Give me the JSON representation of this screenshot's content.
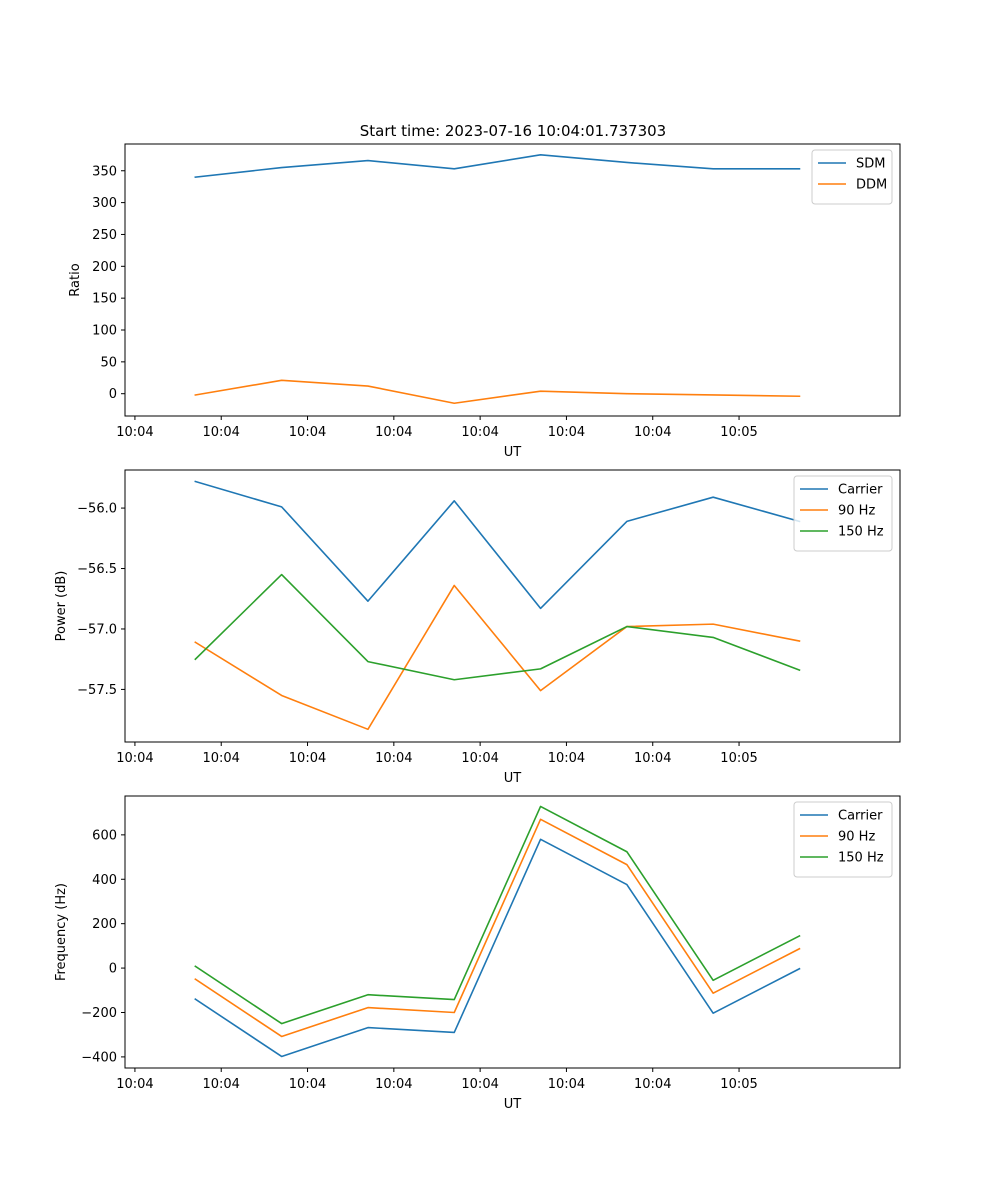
{
  "figure_title": "Start time: 2023-07-16 10:04:01.737303",
  "colors": {
    "blue": "#1f77b4",
    "orange": "#ff7f0e",
    "green": "#2ca02c"
  },
  "chart_data": [
    {
      "type": "line",
      "title": "Start time: 2023-07-16 10:04:01.737303",
      "xlabel": "UT",
      "ylabel": "Ratio",
      "x": [
        1,
        2,
        3,
        4,
        5,
        6,
        7,
        8
      ],
      "x_tick_labels": [
        "10:04",
        "10:04",
        "10:04",
        "10:04",
        "10:04",
        "10:04",
        "10:04",
        "10:05"
      ],
      "xlim": [
        0.185,
        9.165
      ],
      "ylim": [
        -35,
        392
      ],
      "y_ticks": [
        0,
        50,
        100,
        150,
        200,
        250,
        300,
        350
      ],
      "y_tick_labels": [
        "0",
        "50",
        "100",
        "150",
        "200",
        "250",
        "300",
        "350"
      ],
      "legend_position": "top-right",
      "series": [
        {
          "name": "SDM",
          "color": "#1f77b4",
          "values": [
            340,
            355,
            366,
            353,
            375,
            363,
            353,
            353
          ]
        },
        {
          "name": "DDM",
          "color": "#ff7f0e",
          "values": [
            -2,
            21,
            12,
            -15,
            4,
            0,
            -2,
            -4
          ]
        }
      ]
    },
    {
      "type": "line",
      "title": "",
      "xlabel": "UT",
      "ylabel": "Power (dB)",
      "x": [
        1,
        2,
        3,
        4,
        5,
        6,
        7,
        8
      ],
      "x_tick_labels": [
        "10:04",
        "10:04",
        "10:04",
        "10:04",
        "10:04",
        "10:04",
        "10:04",
        "10:05"
      ],
      "xlim": [
        0.185,
        9.165
      ],
      "ylim": [
        -57.935,
        -55.685
      ],
      "y_ticks": [
        -56.0,
        -56.5,
        -57.0,
        -57.5
      ],
      "y_tick_labels": [
        "−56.0",
        "−56.5",
        "−57.0",
        "−57.5"
      ],
      "legend_position": "top-right",
      "series": [
        {
          "name": "Carrier",
          "color": "#1f77b4",
          "values": [
            -55.78,
            -55.99,
            -56.77,
            -55.94,
            -56.83,
            -56.11,
            -55.91,
            -56.11
          ]
        },
        {
          "name": "90 Hz",
          "color": "#ff7f0e",
          "values": [
            -57.11,
            -57.55,
            -57.83,
            -56.64,
            -57.51,
            -56.98,
            -56.96,
            -57.1
          ]
        },
        {
          "name": "150 Hz",
          "color": "#2ca02c",
          "values": [
            -57.25,
            -56.55,
            -57.27,
            -57.42,
            -57.33,
            -56.98,
            -57.07,
            -57.34
          ]
        }
      ]
    },
    {
      "type": "line",
      "title": "",
      "xlabel": "UT",
      "ylabel": "Frequency (Hz)",
      "x": [
        1,
        2,
        3,
        4,
        5,
        6,
        7,
        8
      ],
      "x_tick_labels": [
        "10:04",
        "10:04",
        "10:04",
        "10:04",
        "10:04",
        "10:04",
        "10:04",
        "10:05"
      ],
      "xlim": [
        0.185,
        9.165
      ],
      "ylim": [
        -450,
        775
      ],
      "y_ticks": [
        -400,
        -200,
        0,
        200,
        400,
        600
      ],
      "y_tick_labels": [
        "−400",
        "−200",
        "0",
        "200",
        "400",
        "600"
      ],
      "legend_position": "top-right",
      "series": [
        {
          "name": "Carrier",
          "color": "#1f77b4",
          "values": [
            -140,
            -398,
            -268,
            -290,
            580,
            376,
            -203,
            -3
          ]
        },
        {
          "name": "90 Hz",
          "color": "#ff7f0e",
          "values": [
            -50,
            -308,
            -178,
            -200,
            670,
            466,
            -113,
            87
          ]
        },
        {
          "name": "150 Hz",
          "color": "#2ca02c",
          "values": [
            8,
            -250,
            -120,
            -142,
            728,
            524,
            -55,
            145
          ]
        }
      ]
    }
  ]
}
